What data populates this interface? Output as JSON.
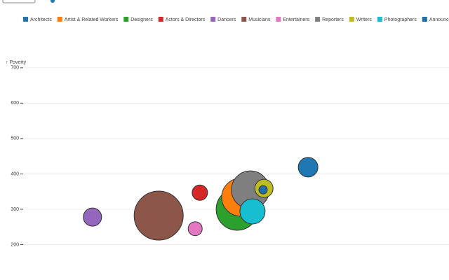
{
  "chart_data": {
    "type": "bubble",
    "y_label": "↑ Poverty",
    "ylim": [
      100,
      765
    ],
    "yticks": [
      200,
      300,
      400,
      500,
      600,
      700
    ],
    "grid": true,
    "xlim": [
      0,
      100
    ],
    "legend": "top",
    "series": [
      {
        "name": "Architects",
        "color": "#1f77b4",
        "x": [
          66.8
        ],
        "values": [
          419
        ],
        "sizes": [
          196
        ]
      },
      {
        "name": "Artist & Related Workers",
        "color": "#ff7f0e",
        "x": [
          50.9
        ],
        "values": [
          334
        ],
        "sizes": [
          729
        ]
      },
      {
        "name": "Designers",
        "color": "#2ca02c",
        "x": [
          50.1
        ],
        "values": [
          300
        ],
        "sizes": [
          900
        ]
      },
      {
        "name": "Actors & Directors",
        "color": "#d62728",
        "x": [
          41.3
        ],
        "values": [
          347
        ],
        "sizes": [
          121
        ]
      },
      {
        "name": "Dancers",
        "color": "#9467bd",
        "x": [
          16.0
        ],
        "values": [
          278
        ],
        "sizes": [
          169
        ]
      },
      {
        "name": "Musicians",
        "color": "#8c564b",
        "x": [
          31.6
        ],
        "values": [
          282
        ],
        "sizes": [
          1225
        ]
      },
      {
        "name": "Entertainers",
        "color": "#e377c2",
        "x": [
          40.2
        ],
        "values": [
          245
        ],
        "sizes": [
          100
        ]
      },
      {
        "name": "Reporters",
        "color": "#7f7f7f",
        "x": [
          53.2
        ],
        "values": [
          355
        ],
        "sizes": [
          729
        ]
      },
      {
        "name": "Writers",
        "color": "#bcbd22",
        "x": [
          56.4
        ],
        "values": [
          359
        ],
        "sizes": [
          169
        ]
      },
      {
        "name": "Photographers",
        "color": "#17becf",
        "x": [
          53.7
        ],
        "values": [
          294
        ],
        "sizes": [
          324
        ]
      },
      {
        "name": "Announcers",
        "color": "#1f6fa8",
        "x": [
          56.2
        ],
        "values": [
          355
        ],
        "sizes": [
          36
        ]
      }
    ]
  }
}
